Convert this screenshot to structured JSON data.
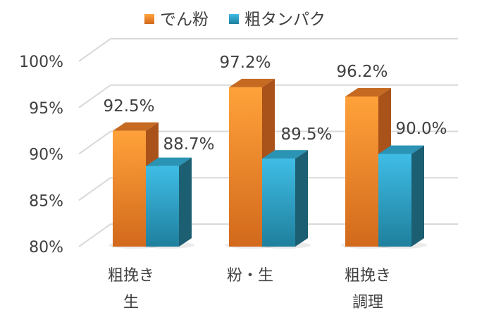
{
  "chart_data": {
    "type": "bar",
    "categories": [
      [
        "粗挽き",
        "生"
      ],
      [
        "粉・生"
      ],
      [
        "粗挽き",
        "調理"
      ]
    ],
    "series": [
      {
        "name": "でん粉",
        "values": [
          92.5,
          97.2,
          96.2
        ],
        "labels": [
          "92.5%",
          "97.2%",
          "96.2%"
        ]
      },
      {
        "name": "粗タンパク",
        "values": [
          88.7,
          89.5,
          90.0
        ],
        "labels": [
          "88.7%",
          "89.5%",
          "90.0%"
        ]
      }
    ],
    "yticks": [
      "80%",
      "85%",
      "90%",
      "95%",
      "100%"
    ],
    "ylim": [
      80,
      100
    ],
    "legend_position": "top",
    "grid": true,
    "style": "3d-clustered-column",
    "colors": {
      "series0": [
        "#ffa23a",
        "#d2691c"
      ],
      "series0_side": "#a9531a",
      "series0_top": "#c66a22",
      "series1": [
        "#3fbde6",
        "#1f7f9d"
      ],
      "series1_side": "#1d5f72",
      "series1_top": "#2b93b3",
      "grid": "#d9d9d9",
      "text": "#404040"
    }
  }
}
